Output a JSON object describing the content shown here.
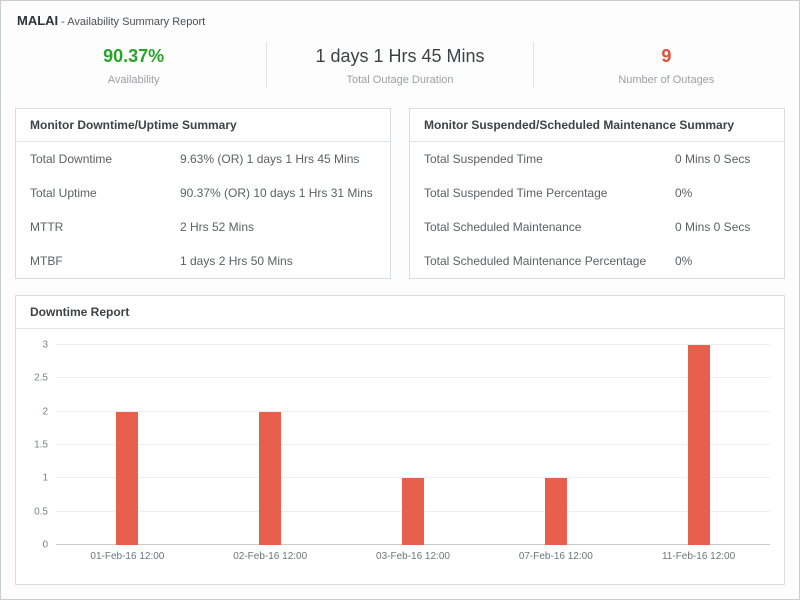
{
  "header": {
    "monitor_name": "MALAI",
    "report_title": "- Availability Summary Report"
  },
  "stats": [
    {
      "value": "90.37%",
      "label": "Availability",
      "color": "#28a428"
    },
    {
      "value": "1 days 1 Hrs 45 Mins",
      "label": "Total Outage Duration",
      "color": "#3c4347"
    },
    {
      "value": "9",
      "label": "Number of Outages",
      "color": "#e74c3c"
    }
  ],
  "downtime_panel": {
    "title": "Monitor Downtime/Uptime Summary",
    "rows": [
      {
        "label": "Total Downtime",
        "value": "9.63% (OR) 1 days 1 Hrs 45 Mins"
      },
      {
        "label": "Total Uptime",
        "value": "90.37% (OR) 10 days 1 Hrs 31 Mins"
      },
      {
        "label": "MTTR",
        "value": "2 Hrs 52 Mins"
      },
      {
        "label": "MTBF",
        "value": "1 days 2 Hrs 50 Mins"
      }
    ]
  },
  "maintenance_panel": {
    "title": "Monitor Suspended/Scheduled Maintenance Summary",
    "rows": [
      {
        "label": "Total Suspended Time",
        "value": "0 Mins 0 Secs"
      },
      {
        "label": "Total Suspended Time Percentage",
        "value": "0%"
      },
      {
        "label": "Total Scheduled Maintenance",
        "value": "0 Mins 0 Secs"
      },
      {
        "label": "Total Scheduled Maintenance Percentage",
        "value": "0%"
      }
    ]
  },
  "chart_data": {
    "type": "bar",
    "title": "Downtime Report",
    "categories": [
      "01-Feb-16 12:00",
      "02-Feb-16 12:00",
      "03-Feb-16 12:00",
      "07-Feb-16 12:00",
      "11-Feb-16 12:00"
    ],
    "values": [
      2,
      2,
      1,
      1,
      3
    ],
    "xlabel": "",
    "ylabel": "",
    "ylim": [
      0,
      3
    ],
    "ytick_step": 0.5,
    "bar_color": "#e8604c",
    "grid": true,
    "legend": "none"
  }
}
